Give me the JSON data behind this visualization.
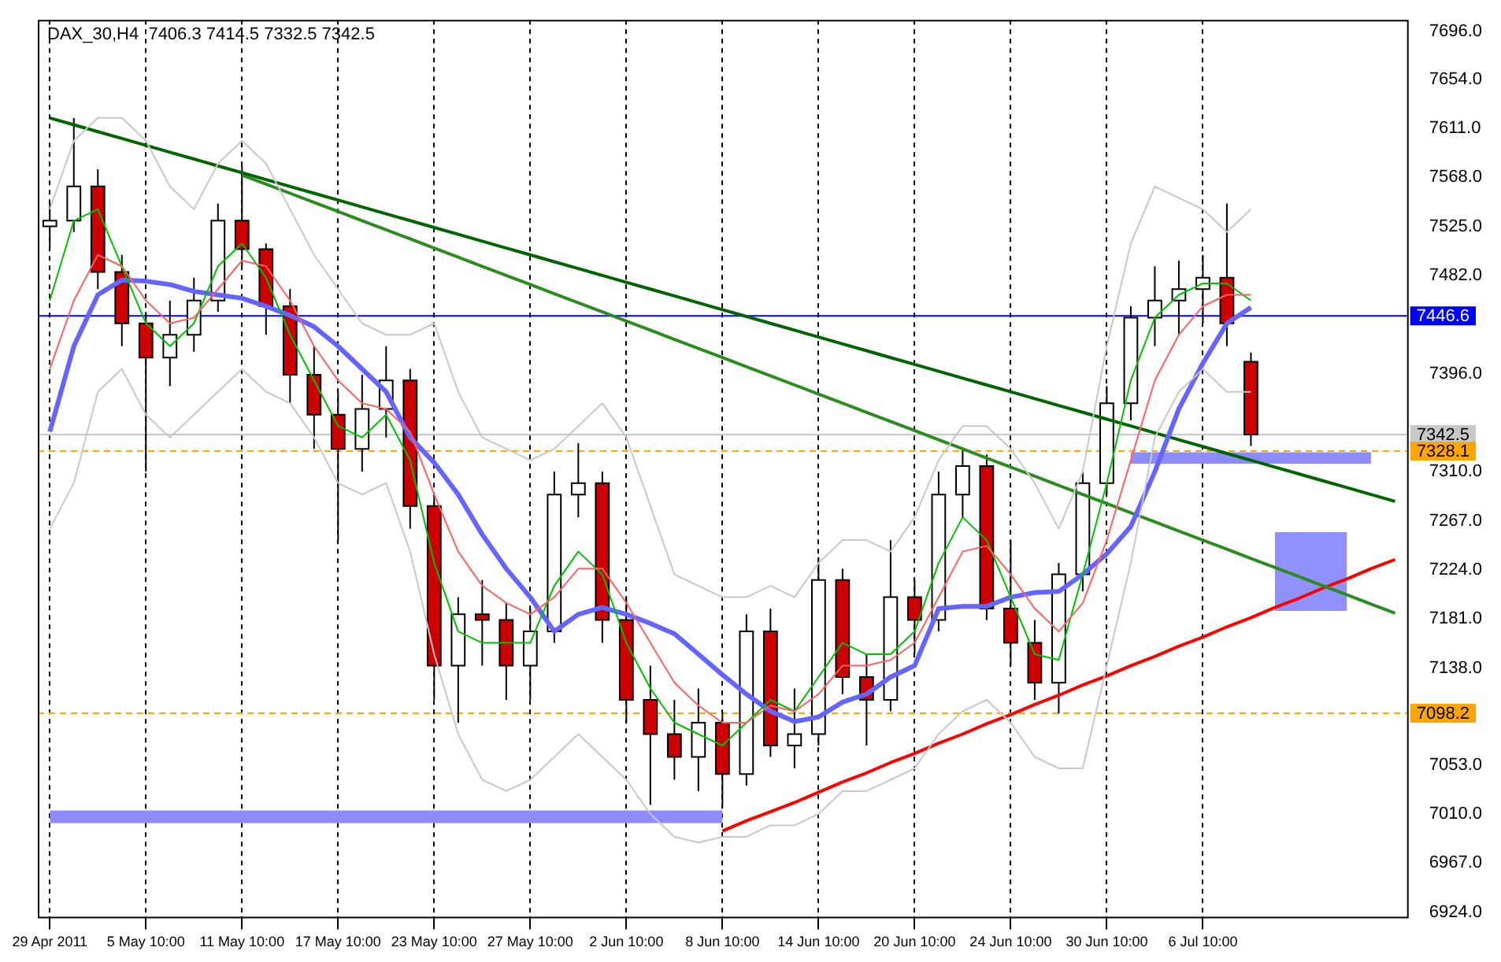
{
  "chart_data": {
    "type": "candlestick",
    "title": "DAX_30,H4  7406.3 7414.5 7332.5 7342.5",
    "categories": [
      "29 Apr 2011",
      null,
      null,
      null,
      "5 May 10:00",
      null,
      null,
      null,
      "11 May 10:00",
      null,
      null,
      null,
      "17 May 10:00",
      null,
      null,
      null,
      "23 May 10:00",
      null,
      null,
      null,
      "27 May 10:00",
      null,
      null,
      null,
      "2 Jun 10:00",
      null,
      null,
      null,
      "8 Jun 10:00",
      null,
      null,
      null,
      "14 Jun 10:00",
      null,
      null,
      null,
      "20 Jun 10:00",
      null,
      null,
      null,
      "24 Jun 10:00",
      null,
      null,
      null,
      "30 Jun 10:00",
      null,
      null,
      null,
      "6 Jul 10:00",
      null,
      null,
      null,
      null,
      null,
      null,
      null,
      null
    ],
    "ohlc": [
      [
        7525,
        7545,
        7505,
        7530
      ],
      [
        7530,
        7620,
        7520,
        7560
      ],
      [
        7560,
        7575,
        7470,
        7485
      ],
      [
        7485,
        7500,
        7420,
        7440
      ],
      [
        7440,
        7450,
        7310,
        7410
      ],
      [
        7410,
        7460,
        7385,
        7430
      ],
      [
        7430,
        7480,
        7415,
        7460
      ],
      [
        7460,
        7545,
        7450,
        7530
      ],
      [
        7530,
        7578,
        7490,
        7505
      ],
      [
        7505,
        7510,
        7430,
        7455
      ],
      [
        7455,
        7470,
        7370,
        7395
      ],
      [
        7395,
        7420,
        7330,
        7360
      ],
      [
        7360,
        7380,
        7250,
        7330
      ],
      [
        7330,
        7395,
        7310,
        7365
      ],
      [
        7365,
        7420,
        7340,
        7390
      ],
      [
        7390,
        7400,
        7260,
        7280
      ],
      [
        7280,
        7290,
        7110,
        7140
      ],
      [
        7140,
        7200,
        7090,
        7185
      ],
      [
        7185,
        7215,
        7140,
        7180
      ],
      [
        7180,
        7195,
        7110,
        7140
      ],
      [
        7140,
        7190,
        7110,
        7170
      ],
      [
        7170,
        7310,
        7160,
        7290
      ],
      [
        7290,
        7335,
        7270,
        7300
      ],
      [
        7300,
        7310,
        7160,
        7180
      ],
      [
        7180,
        7200,
        7090,
        7110
      ],
      [
        7110,
        7140,
        7018,
        7080
      ],
      [
        7080,
        7110,
        7040,
        7060
      ],
      [
        7060,
        7120,
        7030,
        7090
      ],
      [
        7090,
        7100,
        7016,
        7045
      ],
      [
        7045,
        7185,
        7035,
        7170
      ],
      [
        7170,
        7190,
        7060,
        7070
      ],
      [
        7070,
        7120,
        7050,
        7080
      ],
      [
        7080,
        7235,
        7070,
        7215
      ],
      [
        7215,
        7225,
        7115,
        7130
      ],
      [
        7130,
        7150,
        7070,
        7110
      ],
      [
        7110,
        7250,
        7100,
        7200
      ],
      [
        7200,
        7215,
        7150,
        7180
      ],
      [
        7180,
        7310,
        7170,
        7290
      ],
      [
        7290,
        7330,
        7270,
        7315
      ],
      [
        7315,
        7325,
        7180,
        7190
      ],
      [
        7190,
        7250,
        7140,
        7160
      ],
      [
        7160,
        7180,
        7110,
        7125
      ],
      [
        7125,
        7230,
        7098,
        7220
      ],
      [
        7220,
        7310,
        7205,
        7300
      ],
      [
        7300,
        7385,
        7290,
        7370
      ],
      [
        7370,
        7455,
        7355,
        7445
      ],
      [
        7445,
        7490,
        7420,
        7460
      ],
      [
        7460,
        7495,
        7430,
        7470
      ],
      [
        7470,
        7500,
        7440,
        7480
      ],
      [
        7480,
        7545,
        7420,
        7440
      ],
      [
        7406.3,
        7414.5,
        7332.5,
        7342.5
      ],
      null,
      null,
      null,
      null,
      null,
      null
    ],
    "series": [
      {
        "type": "line",
        "color": "#c8c8c8",
        "values": [
          7540,
          7600,
          7620,
          7620,
          7600,
          7560,
          7540,
          7580,
          7600,
          7580,
          7540,
          7500,
          7470,
          7440,
          7430,
          7430,
          7440,
          7380,
          7340,
          7330,
          7320,
          7330,
          7350,
          7370,
          7340,
          7280,
          7220,
          7210,
          7200,
          7200,
          7210,
          7200,
          7230,
          7250,
          7250,
          7240,
          7270,
          7320,
          7350,
          7350,
          7330,
          7300,
          7260,
          7310,
          7420,
          7510,
          7560,
          7550,
          7540,
          7520,
          7540,
          null,
          null,
          null,
          null,
          null,
          null
        ]
      },
      {
        "type": "line",
        "color": "#c8c8c8",
        "values": [
          7260,
          7300,
          7380,
          7400,
          7360,
          7340,
          7360,
          7380,
          7400,
          7380,
          7370,
          7340,
          7300,
          7290,
          7300,
          7240,
          7150,
          7080,
          7040,
          7030,
          7040,
          7060,
          7080,
          7060,
          7040,
          7010,
          6990,
          6985,
          6990,
          6990,
          7000,
          7000,
          7010,
          7030,
          7030,
          7040,
          7050,
          7080,
          7100,
          7110,
          7090,
          7060,
          7050,
          7050,
          7140,
          7230,
          7340,
          7380,
          7400,
          7380,
          7380,
          null,
          null,
          null,
          null,
          null,
          null
        ]
      },
      {
        "type": "line",
        "color": "#ff6060",
        "values": [
          7400,
          7460,
          7500,
          7490,
          7460,
          7440,
          7445,
          7470,
          7495,
          7490,
          7460,
          7420,
          7390,
          7370,
          7365,
          7345,
          7290,
          7240,
          7210,
          7195,
          7185,
          7200,
          7225,
          7225,
          7195,
          7160,
          7125,
          7105,
          7090,
          7090,
          7105,
          7100,
          7115,
          7140,
          7140,
          7145,
          7160,
          7200,
          7240,
          7245,
          7220,
          7190,
          7170,
          7195,
          7250,
          7320,
          7390,
          7430,
          7455,
          7465,
          7465,
          null,
          null,
          null,
          null,
          null,
          null
        ]
      },
      {
        "type": "line",
        "color": "#00c000",
        "values": [
          7460,
          7530,
          7540,
          7490,
          7440,
          7420,
          7440,
          7490,
          7510,
          7480,
          7430,
          7390,
          7350,
          7340,
          7360,
          7320,
          7230,
          7170,
          7160,
          7160,
          7160,
          7210,
          7240,
          7220,
          7160,
          7120,
          7090,
          7080,
          7070,
          7090,
          7110,
          7100,
          7130,
          7160,
          7150,
          7150,
          7170,
          7230,
          7270,
          7250,
          7200,
          7150,
          7145,
          7220,
          7300,
          7390,
          7445,
          7465,
          7475,
          7475,
          7460,
          null,
          null,
          null,
          null,
          null,
          null
        ]
      },
      {
        "type": "line",
        "color": "#6464ff",
        "values": [
          7345,
          7420,
          7465,
          7478,
          7477,
          7474,
          7468,
          7465,
          7462,
          7455,
          7447,
          7437,
          7420,
          7400,
          7380,
          7340,
          7318,
          7290,
          7255,
          7225,
          7200,
          7170,
          7185,
          7191,
          7185,
          7177,
          7168,
          7150,
          7132,
          7115,
          7100,
          7091,
          7095,
          7108,
          7115,
          7130,
          7140,
          7190,
          7192,
          7192,
          7200,
          7204,
          7205,
          7220,
          7238,
          7262,
          7310,
          7365,
          7405,
          7440,
          7454,
          null,
          null,
          null,
          null,
          null,
          null
        ]
      },
      {
        "type": "line",
        "color": "#006400",
        "values": [
          7620,
          7614,
          7608,
          7602,
          7596,
          7590,
          7584,
          7578,
          7572,
          7566,
          7560,
          7554,
          7548,
          7542,
          7536,
          7530,
          7524,
          7518,
          7512,
          7506,
          7500,
          7494,
          7488,
          7482,
          7476,
          7470,
          7464,
          7458,
          7452,
          7446,
          7440,
          7434,
          7428,
          7422,
          7416,
          7410,
          7404,
          7398,
          7392,
          7386,
          7380,
          7374,
          7368,
          7362,
          7356,
          7350,
          7344,
          7338,
          7332,
          7326,
          7320,
          7314,
          7308,
          7302,
          7296,
          7290,
          7284
        ]
      },
      {
        "type": "line",
        "color": "#2e8b22",
        "values": [
          null,
          null,
          null,
          null,
          null,
          null,
          null,
          null,
          7570,
          7562,
          7554,
          7546,
          7538,
          7530,
          7522,
          7514,
          7506,
          7498,
          7490,
          7482,
          7474,
          7466,
          7458,
          7450,
          7442,
          7434,
          7426,
          7418,
          7410,
          7402,
          7394,
          7386,
          7378,
          7370,
          7362,
          7354,
          7346,
          7338,
          7330,
          7322,
          7314,
          7306,
          7298,
          7290,
          7282,
          7274,
          7266,
          7258,
          7250,
          7242,
          7234,
          7226,
          7218,
          7210,
          7202,
          7194,
          7186
        ]
      },
      {
        "type": "line",
        "color": "#ff0000",
        "values": [
          null,
          null,
          null,
          null,
          null,
          null,
          null,
          null,
          null,
          null,
          null,
          null,
          null,
          null,
          null,
          null,
          null,
          null,
          null,
          null,
          null,
          null,
          null,
          null,
          null,
          null,
          null,
          null,
          6995,
          7004,
          7012,
          7020,
          7029,
          7038,
          7046,
          7055,
          7063,
          7072,
          7080,
          7089,
          7097,
          7106,
          7114,
          7123,
          7131,
          7140,
          7148,
          7157,
          7165,
          7174,
          7182,
          7191,
          7199,
          7208,
          7216,
          7225,
          7233
        ]
      },
      {
        "type": "line",
        "color": "#8c8cff",
        "values": [
          null,
          null,
          null,
          null,
          null,
          null,
          null,
          null,
          null,
          null,
          null,
          null,
          null,
          null,
          null,
          null,
          null,
          null,
          null,
          null,
          null,
          null,
          null,
          null,
          null,
          null,
          null,
          null,
          null,
          null,
          null,
          null,
          null,
          null,
          null,
          null,
          null,
          null,
          null,
          null,
          null,
          null,
          null,
          null,
          null,
          null,
          null,
          null,
          null,
          null,
          null,
          null,
          null,
          null,
          null,
          null,
          null
        ],
        "lower": [
          7002,
          7002,
          7002,
          7002,
          7002,
          7002,
          7002,
          7002,
          7002,
          7002,
          7002,
          7002,
          7002,
          7002,
          7002,
          7002,
          7002,
          7002,
          7002,
          7002,
          7002,
          7002,
          7002,
          7002,
          7002,
          7002,
          7002,
          7002,
          7002,
          null,
          null,
          null,
          null,
          null,
          null,
          null,
          null,
          null,
          null,
          null,
          null,
          null,
          null,
          null,
          null,
          null,
          null,
          null,
          null,
          null,
          null,
          null,
          null,
          null,
          null,
          null,
          null
        ],
        "upper": [
          7013,
          7013,
          7013,
          7013,
          7013,
          7013,
          7013,
          7013,
          7013,
          7013,
          7013,
          7013,
          7013,
          7013,
          7013,
          7013,
          7013,
          7013,
          7013,
          7013,
          7013,
          7013,
          7013,
          7013,
          7013,
          7013,
          7013,
          7013,
          7013,
          null,
          null,
          null,
          null,
          null,
          null,
          null,
          null,
          null,
          null,
          null,
          null,
          null,
          null,
          null,
          null,
          null,
          null,
          null,
          null,
          null,
          null,
          null,
          null,
          null,
          null,
          null,
          null
        ]
      },
      {
        "type": "line",
        "color": "#8c8cff",
        "values": [
          null,
          null,
          null,
          null,
          null,
          null,
          null,
          null,
          null,
          null,
          null,
          null,
          null,
          null,
          null,
          null,
          null,
          null,
          null,
          null,
          null,
          null,
          null,
          null,
          null,
          null,
          null,
          null,
          null,
          null,
          null,
          null,
          null,
          null,
          null,
          null,
          null,
          null,
          null,
          null,
          null,
          null,
          null,
          null,
          null,
          null,
          null,
          null,
          null,
          null,
          null,
          null,
          null,
          null,
          null,
          null,
          null
        ],
        "lower": [
          null,
          null,
          null,
          null,
          null,
          null,
          null,
          null,
          null,
          null,
          null,
          null,
          null,
          null,
          null,
          null,
          null,
          null,
          null,
          null,
          null,
          null,
          null,
          null,
          null,
          null,
          null,
          null,
          null,
          null,
          null,
          null,
          null,
          null,
          null,
          null,
          null,
          null,
          null,
          null,
          null,
          null,
          null,
          null,
          null,
          7317,
          7317,
          7317,
          7317,
          7317,
          7317,
          7317,
          7317,
          7317,
          7317,
          7317,
          null
        ],
        "upper": [
          null,
          null,
          null,
          null,
          null,
          null,
          null,
          null,
          null,
          null,
          null,
          null,
          null,
          null,
          null,
          null,
          null,
          null,
          null,
          null,
          null,
          null,
          null,
          null,
          null,
          null,
          null,
          null,
          null,
          null,
          null,
          null,
          null,
          null,
          null,
          null,
          null,
          null,
          null,
          null,
          null,
          null,
          null,
          null,
          null,
          7327,
          7327,
          7327,
          7327,
          7327,
          7327,
          7327,
          7327,
          7327,
          7327,
          7327,
          null
        ]
      },
      {
        "type": "line",
        "color": "#9090ff",
        "values": [
          null,
          null,
          null,
          null,
          null,
          null,
          null,
          null,
          null,
          null,
          null,
          null,
          null,
          null,
          null,
          null,
          null,
          null,
          null,
          null,
          null,
          null,
          null,
          null,
          null,
          null,
          null,
          null,
          null,
          null,
          null,
          null,
          null,
          null,
          null,
          null,
          null,
          null,
          null,
          null,
          null,
          null,
          null,
          null,
          null,
          null,
          null,
          null,
          null,
          null,
          null,
          null,
          null,
          null,
          null,
          null,
          null
        ],
        "lower": [
          null,
          null,
          null,
          null,
          null,
          null,
          null,
          null,
          null,
          null,
          null,
          null,
          null,
          null,
          null,
          null,
          null,
          null,
          null,
          null,
          null,
          null,
          null,
          null,
          null,
          null,
          null,
          null,
          null,
          null,
          null,
          null,
          null,
          null,
          null,
          null,
          null,
          null,
          null,
          null,
          null,
          null,
          null,
          null,
          null,
          null,
          null,
          null,
          null,
          null,
          null,
          7188,
          7188,
          7188,
          7188,
          null,
          null
        ],
        "upper": [
          null,
          null,
          null,
          null,
          null,
          null,
          null,
          null,
          null,
          null,
          null,
          null,
          null,
          null,
          null,
          null,
          null,
          null,
          null,
          null,
          null,
          null,
          null,
          null,
          null,
          null,
          null,
          null,
          null,
          null,
          null,
          null,
          null,
          null,
          null,
          null,
          null,
          null,
          null,
          null,
          null,
          null,
          null,
          null,
          null,
          null,
          null,
          null,
          null,
          null,
          null,
          7257,
          7257,
          7257,
          7257,
          null,
          null
        ]
      }
    ],
    "ylim": [
      6920,
      7706
    ],
    "yticks": [
      {
        "value": 6924,
        "label": "6924.0"
      },
      {
        "value": 6967,
        "label": "6967.0"
      },
      {
        "value": 7010,
        "label": "7010.0"
      },
      {
        "value": 7053,
        "label": "7053.0"
      },
      {
        "value": 7138,
        "label": "7138.0"
      },
      {
        "value": 7181,
        "label": "7181.0"
      },
      {
        "value": 7224,
        "label": "7224.0"
      },
      {
        "value": 7267,
        "label": "7267.0"
      },
      {
        "value": 7310,
        "label": "7310.0"
      },
      {
        "value": 7396,
        "label": "7396.0"
      },
      {
        "value": 7482,
        "label": "7482.0"
      },
      {
        "value": 7525,
        "label": "7525.0"
      },
      {
        "value": 7568,
        "label": "7568.0"
      },
      {
        "value": 7611,
        "label": "7611.0"
      },
      {
        "value": 7654,
        "label": "7654.0"
      },
      {
        "value": 7696,
        "label": "7696.0"
      }
    ],
    "ref_lines": [
      {
        "axis": "y",
        "value": 7446.6,
        "label": "7446.6",
        "color": "#0000ff",
        "line_style": "solid"
      },
      {
        "axis": "y",
        "value": 7342.5,
        "label": "7342.5",
        "color": "#c8c8c8",
        "line_style": "solid"
      },
      {
        "axis": "y",
        "value": 7328.1,
        "label": "7328.1",
        "color": "#ffa500",
        "line_style": "dashed"
      },
      {
        "axis": "y",
        "value": 7098.2,
        "label": "7098.2",
        "color": "#ffa500",
        "line_style": "dashed"
      }
    ],
    "grid": "x"
  }
}
